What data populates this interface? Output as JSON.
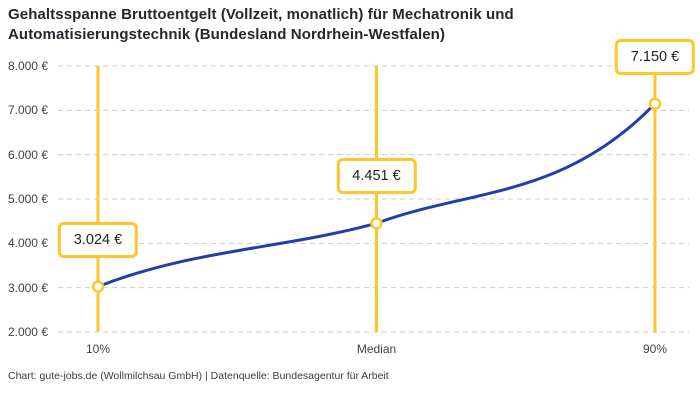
{
  "footer": {
    "text": "Chart: gute-jobs.de (Wollmilchsau GmbH) | Datenquelle: Bundesagentur für Arbeit"
  },
  "colors": {
    "accent_yellow": "#FFC62B",
    "line_blue": "#2040A8",
    "grid_gray": "#CBCBCB",
    "title_text": "#26262E",
    "axis_text": "#3F3F46",
    "marker_fill": "#FFFFFF"
  },
  "chart_data": {
    "type": "line",
    "title": "Gehaltsspanne Bruttoentgelt (Vollzeit, monatlich) für Mechatronik und Automatisierungstechnik (Bundesland Nordrhein-Westfalen)",
    "categories": [
      "10%",
      "Median",
      "90%"
    ],
    "values": [
      3024,
      4451,
      7150
    ],
    "value_labels": [
      "3.024 €",
      "4.451 €",
      "7.150 €"
    ],
    "series_name": "Bruttoentgelt",
    "y_axis": {
      "min": 2000,
      "max": 8000,
      "step": 1000,
      "tick_values": [
        2000,
        3000,
        4000,
        5000,
        6000,
        7000,
        8000
      ],
      "tick_labels": [
        "2.000 €",
        "3.000 €",
        "4.000 €",
        "5.000 €",
        "6.000 €",
        "7.000 €",
        "8.000 €"
      ]
    },
    "grid": "horizontal dashed",
    "legend": "none",
    "annotations": {
      "style": "vertical accent line per category with circular marker and boxed value label above point"
    }
  }
}
